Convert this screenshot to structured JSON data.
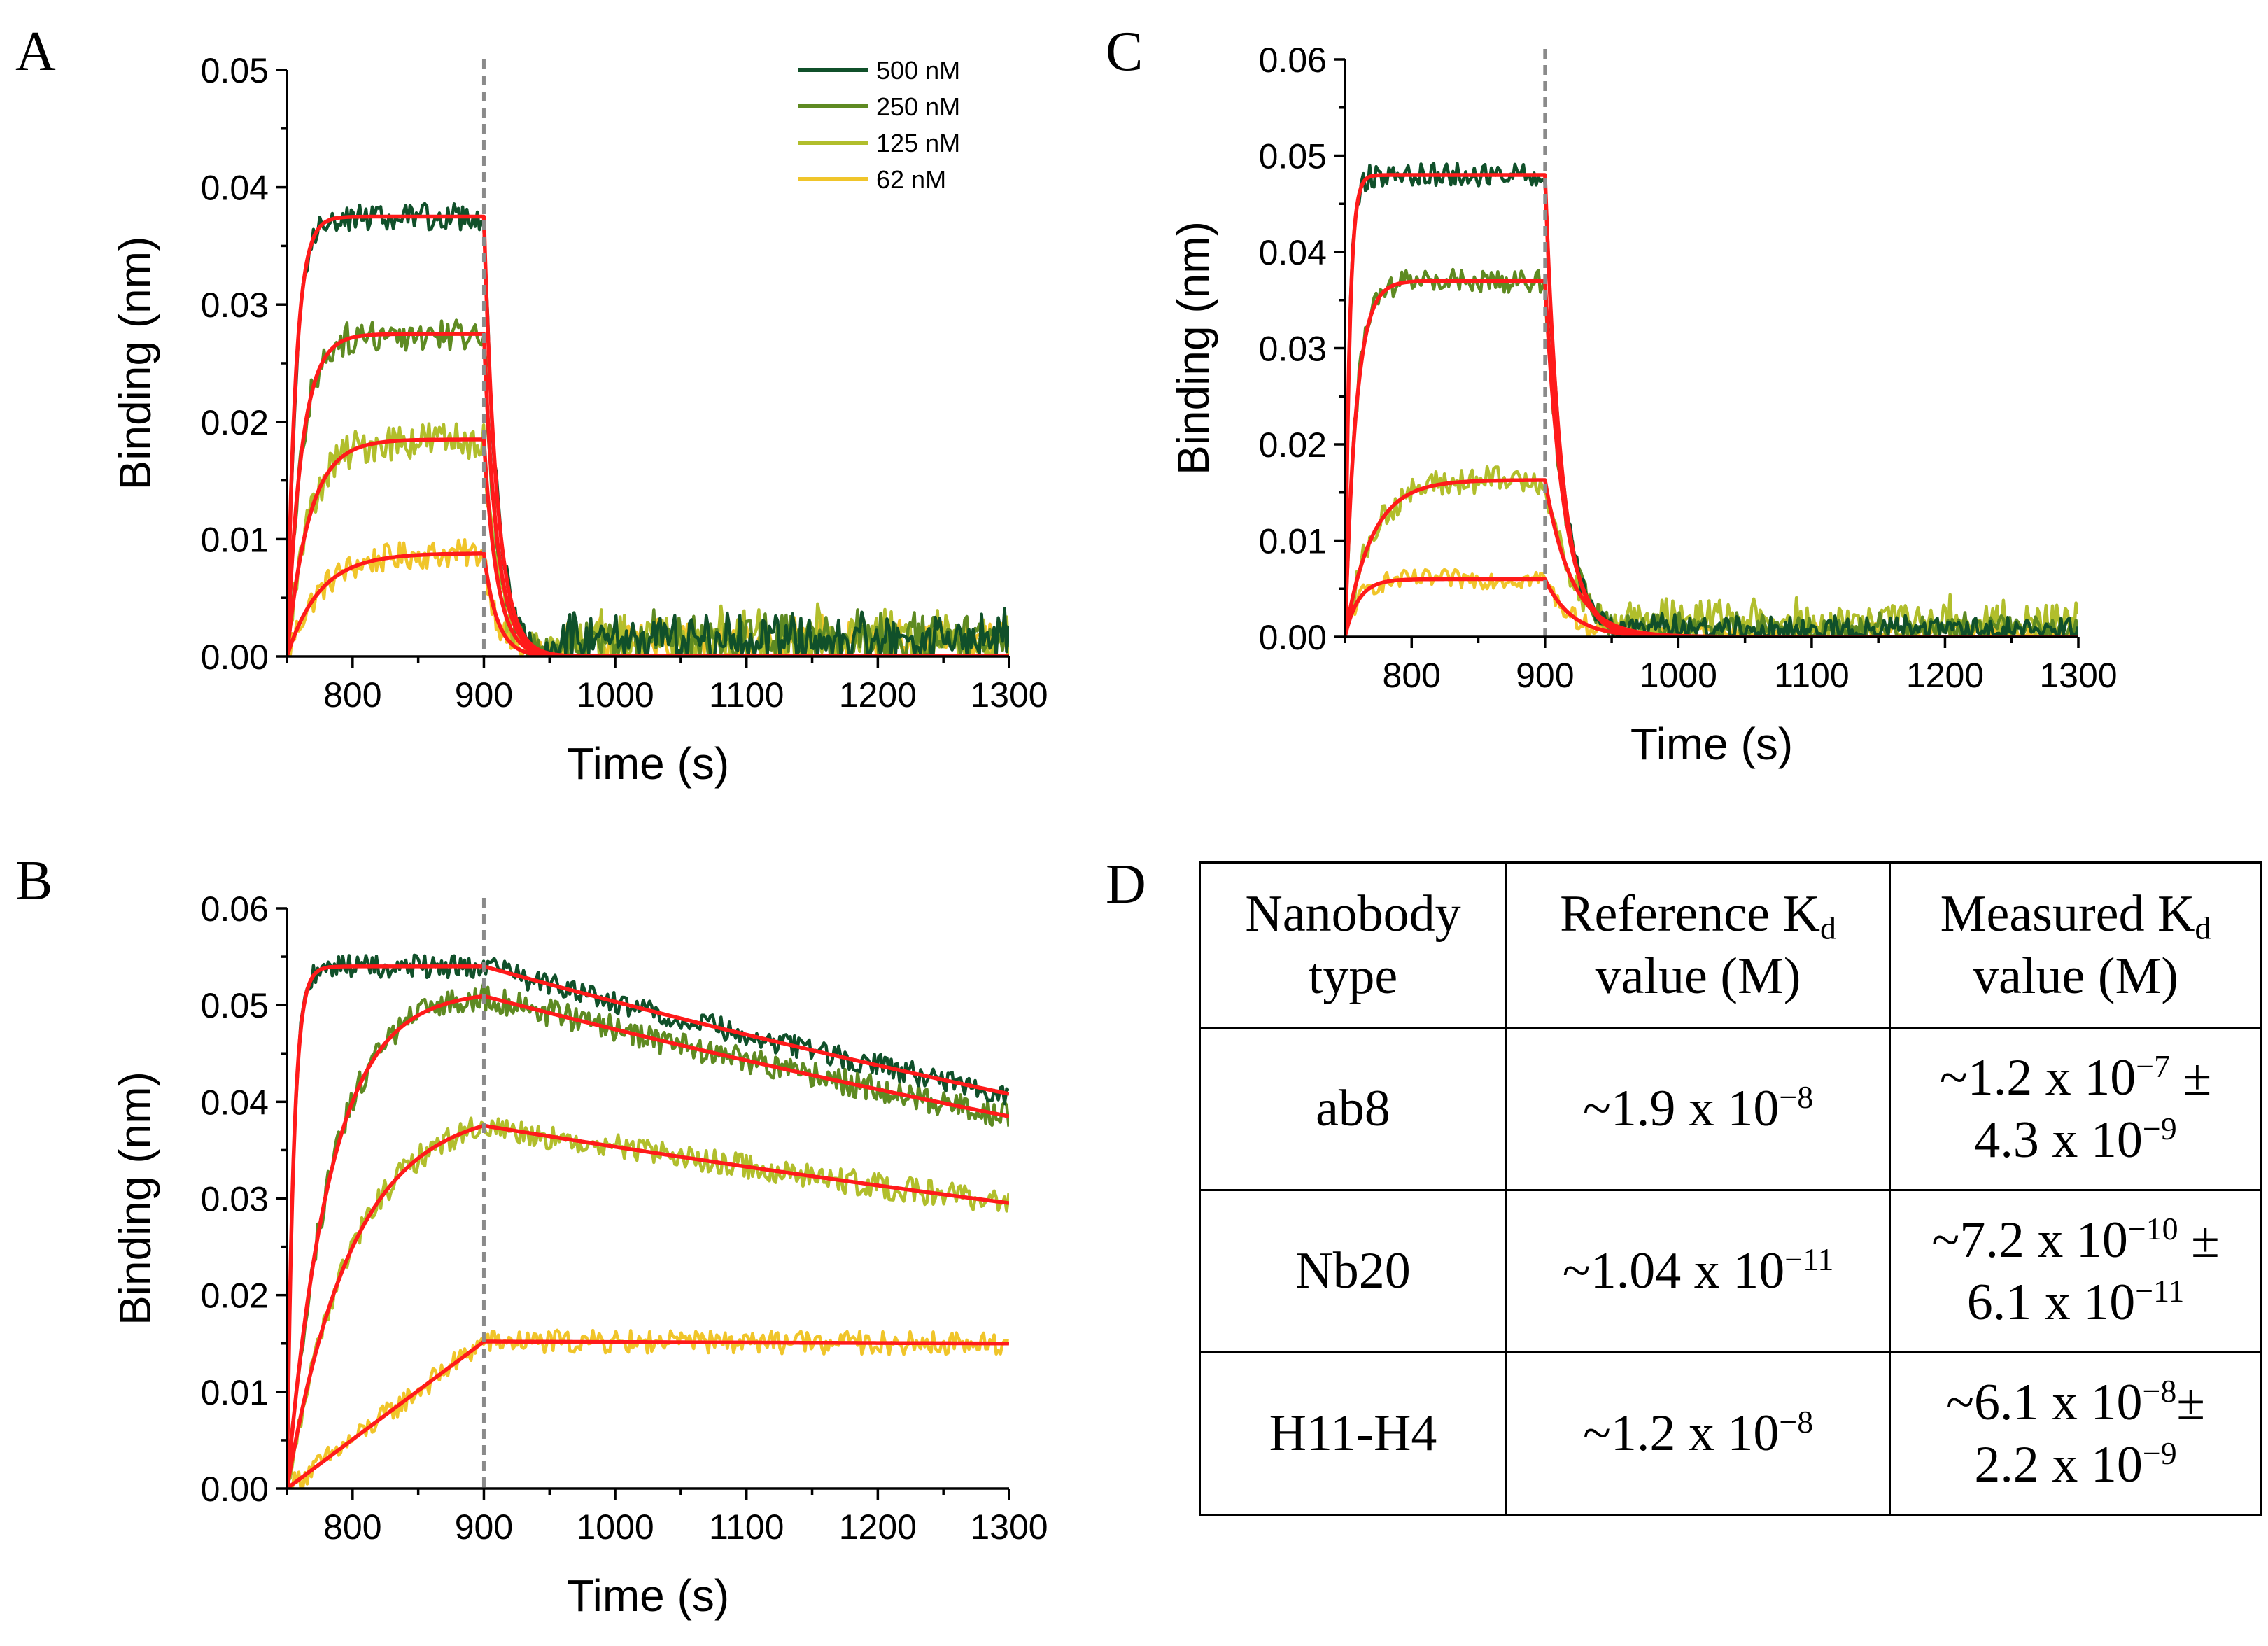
{
  "figure": {
    "panel_letters": {
      "A": "A",
      "B": "B",
      "C": "C",
      "D": "D"
    },
    "colors": {
      "c500": "#10502a",
      "c250": "#5e8a22",
      "c125": "#b1be2c",
      "c62": "#f0c52a",
      "fit": "#ff1a1a",
      "association_end_line": "#8a8a8a"
    }
  },
  "chart_data": [
    {
      "id": "A",
      "type": "line",
      "xlabel": "Time (s)",
      "ylabel": "Binding (nm)",
      "xlim": [
        750,
        1300
      ],
      "ylim": [
        0,
        0.05
      ],
      "xticks": [
        800,
        900,
        1000,
        1100,
        1200,
        1300
      ],
      "xtick_labels": [
        "800",
        "900",
        "1000",
        "1100",
        "1200",
        "1300"
      ],
      "yticks": [
        0,
        0.01,
        0.02,
        0.03,
        0.04,
        0.05
      ],
      "ytick_labels": [
        "0.00",
        "0.01",
        "0.02",
        "0.03",
        "0.04",
        "0.05"
      ],
      "association_end": 900,
      "legend": {
        "placement": "top-right",
        "entries": [
          "500 nM",
          "250 nM",
          "125 nM",
          "62 nM"
        ]
      },
      "series": [
        {
          "name": "500 nM",
          "color_key": "c500",
          "plateau": 0.0375,
          "ka_rate": 0.15,
          "kd_rate": 0.1,
          "final": 0.0,
          "noise": 0.0012,
          "tail": 0.003
        },
        {
          "name": "250 nM",
          "color_key": "c250",
          "plateau": 0.0275,
          "ka_rate": 0.09,
          "kd_rate": 0.1,
          "final": 0.0,
          "noise": 0.0014,
          "tail": 0.003
        },
        {
          "name": "125 nM",
          "color_key": "c125",
          "plateau": 0.0185,
          "ka_rate": 0.06,
          "kd_rate": 0.1,
          "final": 0.0,
          "noise": 0.0016,
          "tail": 0.003
        },
        {
          "name": "62 nM",
          "color_key": "c62",
          "plateau": 0.0088,
          "ka_rate": 0.04,
          "kd_rate": 0.1,
          "final": 0.0,
          "noise": 0.0012,
          "tail": 0.0025
        }
      ]
    },
    {
      "id": "B",
      "type": "line",
      "xlabel": "Time (s)",
      "ylabel": "Binding (nm)",
      "xlim": [
        750,
        1300
      ],
      "ylim": [
        0,
        0.06
      ],
      "xticks": [
        800,
        900,
        1000,
        1100,
        1200,
        1300
      ],
      "xtick_labels": [
        "800",
        "900",
        "1000",
        "1100",
        "1200",
        "1300"
      ],
      "yticks": [
        0,
        0.01,
        0.02,
        0.03,
        0.04,
        0.05,
        0.06
      ],
      "ytick_labels": [
        "0.00",
        "0.01",
        "0.02",
        "0.03",
        "0.04",
        "0.05",
        "0.06"
      ],
      "association_end": 900,
      "series": [
        {
          "name": "500 nM",
          "color_key": "c500",
          "plateau": 0.054,
          "ka_rate": 0.2,
          "kd_rate": 0.0007,
          "final": 0.0,
          "noise": 0.0012,
          "tail": 0.0
        },
        {
          "name": "250 nM",
          "color_key": "c250",
          "plateau": 0.0515,
          "ka_rate": 0.03,
          "kd_rate": 0.0007,
          "final": 0.0,
          "noise": 0.0014,
          "tail": 0.0
        },
        {
          "name": "125 nM",
          "color_key": "c125",
          "plateau": 0.0395,
          "ka_rate": 0.02,
          "kd_rate": 0.0006,
          "final": 0.0,
          "noise": 0.0013,
          "tail": 0.0
        },
        {
          "name": "62 nM",
          "color_key": "c62",
          "plateau": 0.0152,
          "ka_rate": 0.0,
          "kd_rate": 0.0,
          "final": 0.015,
          "noise": 0.0012,
          "tail": 0.0,
          "linear": true
        }
      ]
    },
    {
      "id": "C",
      "type": "line",
      "xlabel": "Time (s)",
      "ylabel": "Binding (nm)",
      "xlim": [
        750,
        1300
      ],
      "ylim": [
        0,
        0.06
      ],
      "xticks": [
        800,
        900,
        1000,
        1100,
        1200,
        1300
      ],
      "xtick_labels": [
        "800",
        "900",
        "1000",
        "1100",
        "1200",
        "1300"
      ],
      "yticks": [
        0,
        0.01,
        0.02,
        0.03,
        0.04,
        0.05,
        0.06
      ],
      "ytick_labels": [
        "0.00",
        "0.01",
        "0.02",
        "0.03",
        "0.04",
        "0.05",
        "0.06"
      ],
      "association_end": 900,
      "series": [
        {
          "name": "500 nM",
          "color_key": "c500",
          "plateau": 0.048,
          "ka_rate": 0.3,
          "kd_rate": 0.08,
          "final": 0.0,
          "noise": 0.0012,
          "tail": 0.0015
        },
        {
          "name": "250 nM",
          "color_key": "c250",
          "plateau": 0.037,
          "ka_rate": 0.12,
          "kd_rate": 0.07,
          "final": 0.0,
          "noise": 0.0012,
          "tail": 0.0015
        },
        {
          "name": "125 nM",
          "color_key": "c125",
          "plateau": 0.0163,
          "ka_rate": 0.05,
          "kd_rate": 0.05,
          "final": 0.0,
          "noise": 0.0015,
          "tail": 0.003
        },
        {
          "name": "62 nM",
          "color_key": "c62",
          "plateau": 0.006,
          "ka_rate": 0.1,
          "kd_rate": 0.05,
          "final": 0.0,
          "noise": 0.001,
          "tail": 0.0008
        }
      ]
    }
  ],
  "table": {
    "headers": [
      {
        "main": "Nanobody",
        "line2": "type"
      },
      {
        "main": "Reference K",
        "sub": "d",
        "line2": "value (M)"
      },
      {
        "main": "Measured K",
        "sub": "d",
        "line2": "value (M)"
      }
    ],
    "rows": [
      {
        "nanobody": "ab8",
        "ref_base": "~1.9 x 10",
        "ref_exp": "−8",
        "meas_base": "~1.2 x 10",
        "meas_exp": "−7",
        "meas_pm": " ±",
        "meas_err_base": "4.3 x 10",
        "meas_err_exp": "−9"
      },
      {
        "nanobody": "Nb20",
        "ref_base": "~1.04 x 10",
        "ref_exp": "−11",
        "meas_base": "~7.2 x 10",
        "meas_exp": "−10",
        "meas_pm": " ±",
        "meas_err_base": "6.1 x 10",
        "meas_err_exp": "−11"
      },
      {
        "nanobody": "H11-H4",
        "ref_base": "~1.2 x 10",
        "ref_exp": "−8",
        "meas_base": "~6.1 x 10",
        "meas_exp": "−8",
        "meas_pm": "±",
        "meas_err_base": "2.2 x 10",
        "meas_err_exp": "−9"
      }
    ]
  }
}
